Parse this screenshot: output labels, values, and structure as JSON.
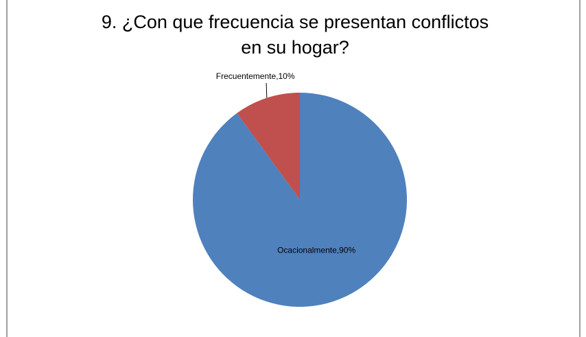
{
  "chart_data": {
    "type": "pie",
    "title": "9. ¿Con que frecuencia se presentan conflictos en su hogar?",
    "values": [
      90,
      10
    ],
    "value_labels": [
      "Ocacionalmente,90%",
      "Frecuentemente,10%"
    ],
    "colors": [
      "#4f81bd",
      "#c0504d"
    ]
  }
}
